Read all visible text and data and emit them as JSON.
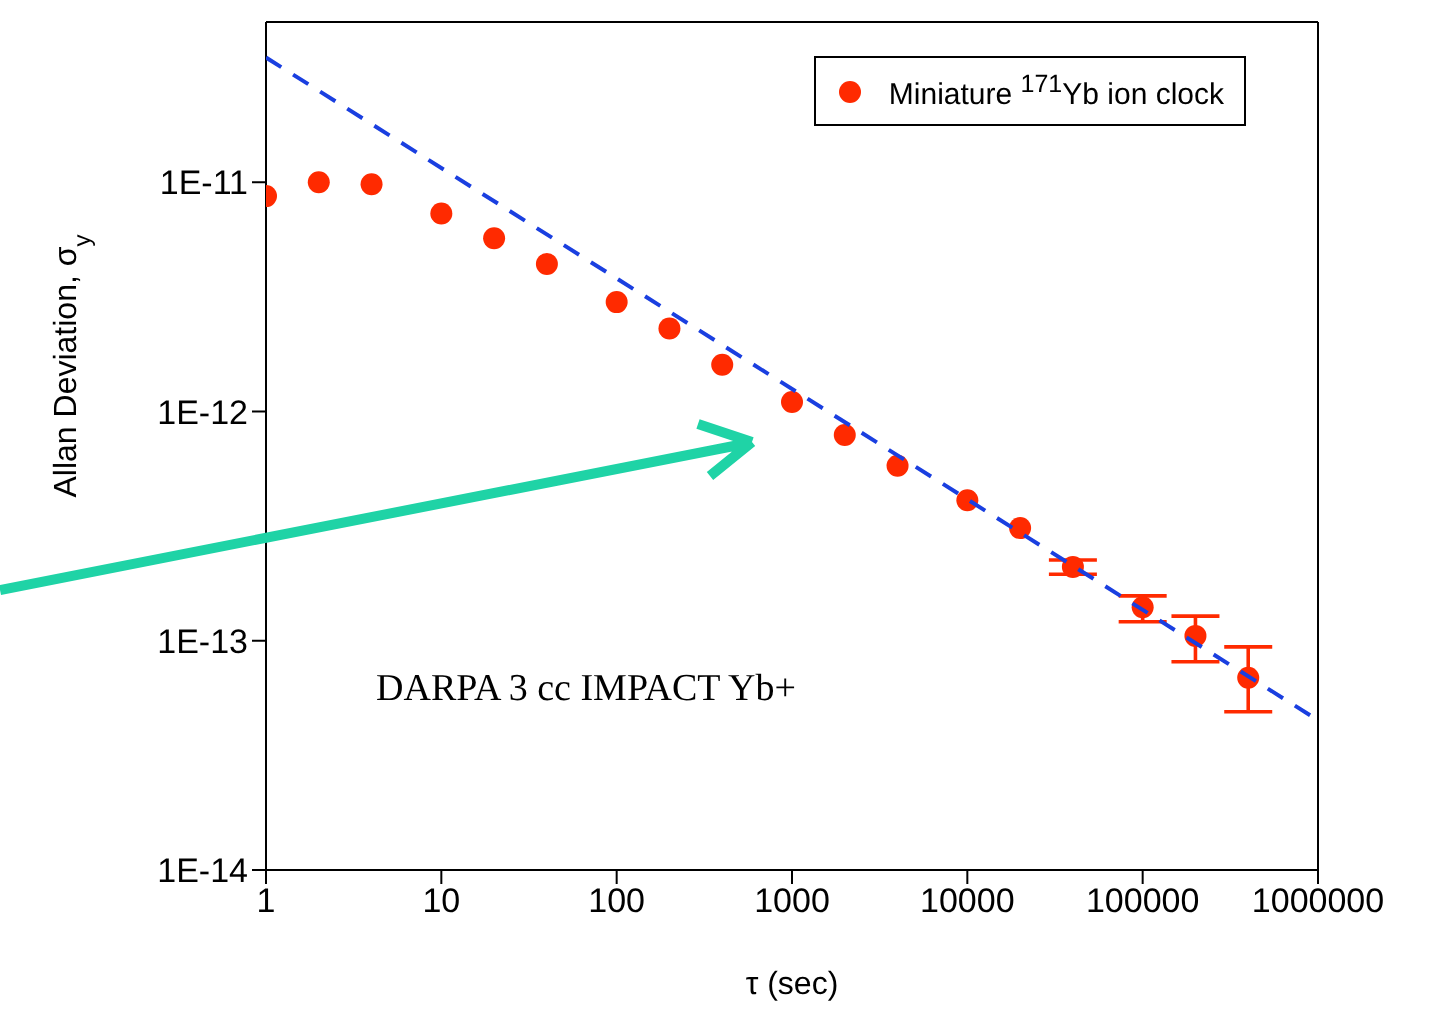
{
  "chart_data": {
    "type": "scatter",
    "xlabel": "τ (sec)",
    "ylabel": "Allan Deviation, σ$_{y}$",
    "log": "xy",
    "grid": false,
    "legend": "top right",
    "marker": "circle",
    "xlim": [
      1,
      1000000
    ],
    "xticks": [
      1,
      10,
      100,
      1000,
      10000,
      100000,
      1000000
    ],
    "ylim": [
      1e-14,
      5e-11
    ],
    "yticks": [
      {
        "value": 1e-14,
        "label": "1E-14"
      },
      {
        "value": 1e-13,
        "label": "1E-13"
      },
      {
        "value": 1e-12,
        "label": "1E-12"
      },
      {
        "value": 1e-11,
        "label": "1E-11"
      }
    ],
    "annotations": [
      "DARPA 3 cc IMPACT Yb+"
    ],
    "series": [
      {
        "name": "Miniature $^{171}$Yb ion clock",
        "color": "#ff2a00",
        "x": [
          1,
          2,
          4,
          10,
          20,
          40,
          100,
          200,
          400,
          1000,
          2000,
          4000,
          10000,
          20000,
          40000,
          100000,
          200000,
          400000
        ],
        "values": [
          8.7e-12,
          1e-11,
          9.8e-12,
          7.3e-12,
          5.7e-12,
          4.4e-12,
          3e-12,
          2.3e-12,
          1.6e-12,
          1.1e-12,
          7.9e-13,
          5.8e-13,
          4.1e-13,
          3.1e-13,
          2.1e-13,
          1.4e-13,
          1.05e-13,
          6.9e-14
        ],
        "errors": [
          null,
          null,
          null,
          null,
          null,
          null,
          null,
          null,
          null,
          null,
          null,
          null,
          null,
          null,
          [
            1.95e-13,
            2.25e-13
          ],
          [
            1.21e-13,
            1.57e-13
          ],
          [
            8.1e-14,
            1.28e-13
          ],
          [
            4.9e-14,
            9.4e-14
          ]
        ]
      },
      {
        "type": "line",
        "color": "#1a3fe0",
        "line_style": "dashed",
        "marker": "none",
        "x": [
          1,
          1000000
        ],
        "values": [
          3.5e-11,
          4.5e-14
        ]
      }
    ]
  }
}
